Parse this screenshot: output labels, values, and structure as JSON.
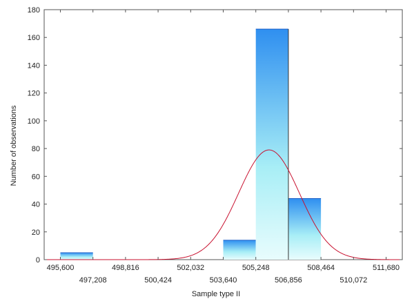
{
  "chart_data": {
    "type": "bar",
    "title": "",
    "xlabel": "Sample type II",
    "ylabel": "Number of observations",
    "xlim": [
      494800,
      512480
    ],
    "ylim": [
      0,
      180
    ],
    "y_ticks": [
      0,
      20,
      40,
      60,
      80,
      100,
      120,
      140,
      160,
      180
    ],
    "x_ticks": [
      495600,
      497208,
      498816,
      500424,
      502032,
      503640,
      505248,
      506856,
      508464,
      510072,
      511680
    ],
    "x_tick_labels": [
      "495,600",
      "497,208",
      "498,816",
      "500,424",
      "502,032",
      "503,640",
      "505,248",
      "506,856",
      "508,464",
      "510,072",
      "511,680"
    ],
    "bin_width": 1608,
    "bins": [
      {
        "start": 495600,
        "end": 497208,
        "count": 5
      },
      {
        "start": 497208,
        "end": 498816,
        "count": 0
      },
      {
        "start": 498816,
        "end": 500424,
        "count": 0
      },
      {
        "start": 500424,
        "end": 502032,
        "count": 0
      },
      {
        "start": 502032,
        "end": 503640,
        "count": 0
      },
      {
        "start": 503640,
        "end": 505248,
        "count": 14
      },
      {
        "start": 505248,
        "end": 506856,
        "count": 166
      },
      {
        "start": 506856,
        "end": 508464,
        "count": 44
      },
      {
        "start": 508464,
        "end": 510072,
        "count": 0
      },
      {
        "start": 510072,
        "end": 511680,
        "count": 0
      }
    ],
    "normal_curve": {
      "peak": 79,
      "mean": 505900,
      "sd": 1500
    },
    "grid": false,
    "legend": "none",
    "colors": {
      "bar_top": "#2f8ff0",
      "bar_mid": "#9fe9f4",
      "bar_bottom": "#e3fbfd",
      "bar_edge": "#1f5fc6",
      "curve": "#c8102e",
      "axis": "#555555"
    }
  }
}
